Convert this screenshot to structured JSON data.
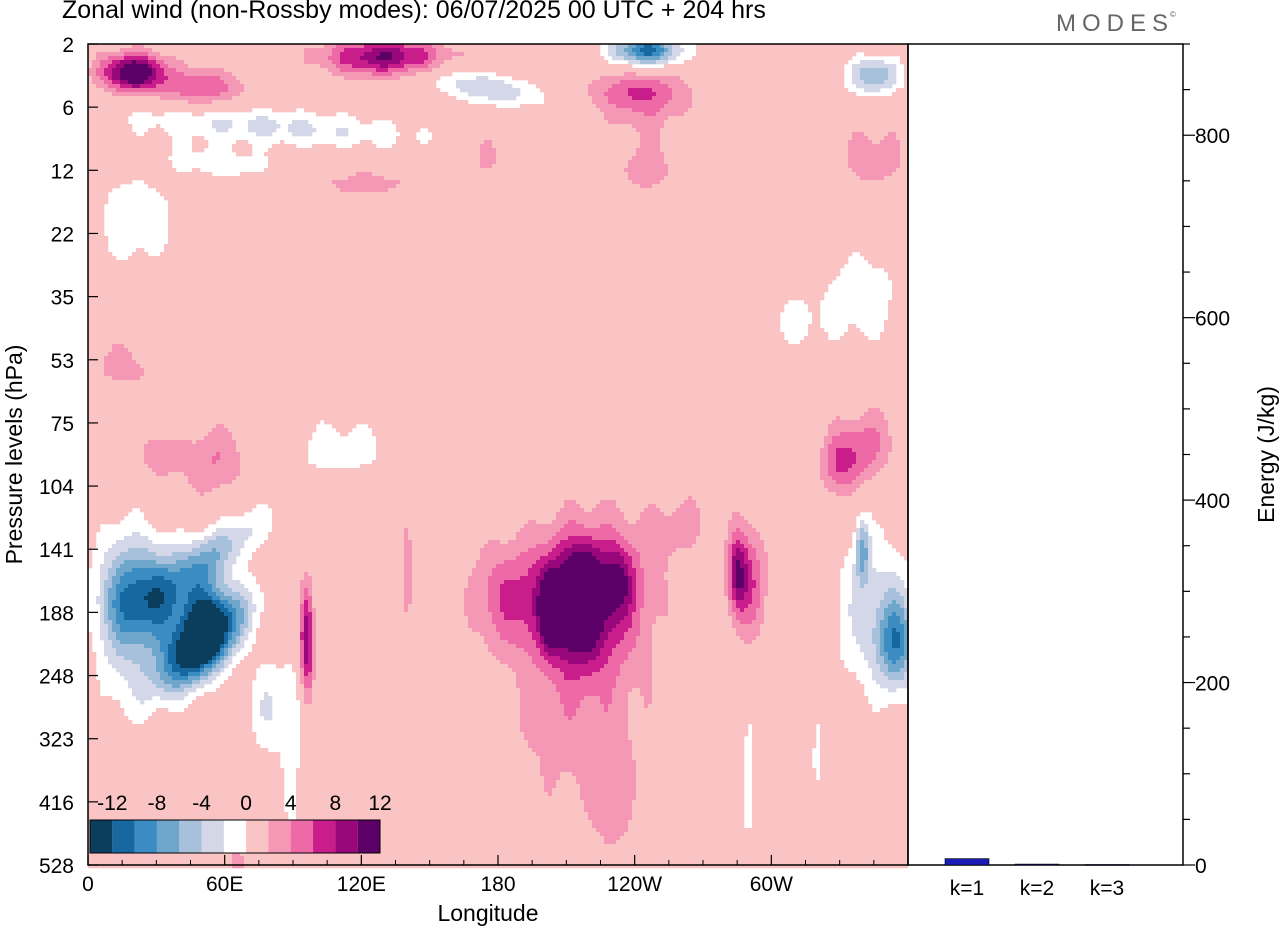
{
  "header": {
    "title": "Zonal wind (non-Rossby modes):  06/07/2025  00 UTC  + 204 hrs",
    "brand": "MODES",
    "brand_mark": "©"
  },
  "colors": {
    "scale": [
      "#0b3d5c",
      "#1767a0",
      "#3b8cc2",
      "#6ea6cc",
      "#a7c1dc",
      "#d4d7e8",
      "#ffffff",
      "#f9c4c3",
      "#f598b6",
      "#ee6aa6",
      "#c91d8c",
      "#99087a",
      "#5c0068"
    ]
  },
  "chart_data": [
    {
      "type": "heatmap",
      "title": "Zonal wind (non-Rossby modes):  06/07/2025  00 UTC  + 204 hrs",
      "xlabel": "Longitude",
      "ylabel": "Pressure levels (hPa)",
      "x_ticks": [
        "0",
        "60E",
        "120E",
        "180",
        "120W",
        "60W"
      ],
      "x_tick_values": [
        0,
        60,
        120,
        180,
        240,
        300
      ],
      "xlim": [
        0,
        360
      ],
      "y_ticks": [
        "2",
        "6",
        "12",
        "22",
        "35",
        "53",
        "75",
        "104",
        "141",
        "188",
        "248",
        "323",
        "416",
        "528"
      ],
      "colorbar_labels": [
        "-12",
        "-8",
        "-4",
        "0",
        "4",
        "8",
        "12"
      ],
      "colorbar_levels": [
        -14,
        -12,
        -10,
        -8,
        -6,
        -4,
        -2,
        2,
        4,
        6,
        8,
        10,
        12,
        14
      ],
      "units": "",
      "blobs": [
        {
          "x": 50,
          "y": 9.5,
          "rx": 12,
          "ry": 0.9,
          "v": -16,
          "rot": -40
        },
        {
          "x": 52,
          "y": 9.0,
          "rx": 9,
          "ry": 0.8,
          "v": -6
        },
        {
          "x": 58,
          "y": 8.0,
          "rx": 10,
          "ry": 0.9,
          "v": -6,
          "rot": -50
        },
        {
          "x": 30,
          "y": 8.8,
          "rx": 20,
          "ry": 0.8,
          "v": -12
        },
        {
          "x": 15,
          "y": 9.0,
          "rx": 12,
          "ry": 1.5,
          "v": -5
        },
        {
          "x": 80,
          "y": 10.5,
          "rx": 10,
          "ry": 0.8,
          "v": -4
        },
        {
          "x": 96,
          "y": 9.5,
          "rx": 3,
          "ry": 0.9,
          "v": 10
        },
        {
          "x": 140,
          "y": 8.5,
          "rx": 3,
          "ry": 0.9,
          "v": 3.5
        },
        {
          "x": 178,
          "y": 8.7,
          "rx": 11,
          "ry": 0.8,
          "v": 2.5
        },
        {
          "x": 200,
          "y": 8.8,
          "rx": 24,
          "ry": 0.9,
          "v": 6
        },
        {
          "x": 224,
          "y": 8.7,
          "rx": 24,
          "ry": 1.2,
          "v": 7
        },
        {
          "x": 215,
          "y": 9.0,
          "rx": 12,
          "ry": 0.9,
          "v": 6
        },
        {
          "x": 203,
          "y": 9.0,
          "rx": 4,
          "ry": 0.5,
          "v": 8
        },
        {
          "x": 218,
          "y": 8.5,
          "rx": 6,
          "ry": 0.5,
          "v": 5
        },
        {
          "x": 233,
          "y": 8.5,
          "rx": 6,
          "ry": 0.5,
          "v": 5
        },
        {
          "x": 215,
          "y": 10.8,
          "rx": 32,
          "ry": 1.4,
          "v": 3
        },
        {
          "x": 230,
          "y": 12.0,
          "rx": 8,
          "ry": 0.9,
          "v": 3
        },
        {
          "x": 260,
          "y": 7.6,
          "rx": 15,
          "ry": 0.6,
          "v": 2.5,
          "rot": -30
        },
        {
          "x": 290,
          "y": 8.5,
          "rx": 8,
          "ry": 0.9,
          "v": 6
        },
        {
          "x": 285,
          "y": 8.4,
          "rx": 4,
          "ry": 0.6,
          "v": 7
        },
        {
          "x": 345,
          "y": 9.0,
          "rx": 18,
          "ry": 1.3,
          "v": -5
        },
        {
          "x": 355,
          "y": 9.5,
          "rx": 8,
          "ry": 0.7,
          "v": -9
        },
        {
          "x": 340,
          "y": 8.0,
          "rx": 3,
          "ry": 0.5,
          "v": -7
        },
        {
          "x": 340,
          "y": 6.4,
          "rx": 14,
          "ry": 0.6,
          "v": 5,
          "rot": -20
        },
        {
          "x": 330,
          "y": 6.7,
          "rx": 8,
          "ry": 0.5,
          "v": 4
        },
        {
          "x": 55,
          "y": 6.6,
          "rx": 16,
          "ry": 0.6,
          "v": 4,
          "rot": -35
        },
        {
          "x": 30,
          "y": 6.5,
          "rx": 8,
          "ry": 0.4,
          "v": 3
        },
        {
          "x": 110,
          "y": 6.4,
          "rx": 28,
          "ry": 0.5,
          "v": -3
        },
        {
          "x": 15,
          "y": 5.1,
          "rx": 22,
          "ry": 0.5,
          "v": 2.5,
          "rot": -10
        },
        {
          "x": 40,
          "y": 4.0,
          "rx": 12,
          "ry": 0.3,
          "v": 2.2
        },
        {
          "x": 230,
          "y": 5.0,
          "rx": 10,
          "ry": 0.3,
          "v": -2.2
        },
        {
          "x": 310,
          "y": 4.4,
          "rx": 15,
          "ry": 0.5,
          "v": -2.5
        },
        {
          "x": 340,
          "y": 4.0,
          "rx": 18,
          "ry": 0.8,
          "v": -3.5
        },
        {
          "x": 20,
          "y": 2.8,
          "rx": 20,
          "ry": 0.8,
          "v": -3.5
        },
        {
          "x": 60,
          "y": 1.9,
          "rx": 30,
          "ry": 0.3,
          "v": -3,
          "rot": -8
        },
        {
          "x": 120,
          "y": 2.2,
          "rx": 35,
          "ry": 0.3,
          "v": 2.5
        },
        {
          "x": 175,
          "y": 1.7,
          "rx": 12,
          "ry": 0.4,
          "v": 2.5
        },
        {
          "x": 245,
          "y": 2.0,
          "rx": 15,
          "ry": 0.4,
          "v": 3
        },
        {
          "x": 345,
          "y": 1.8,
          "rx": 15,
          "ry": 0.6,
          "v": 3
        },
        {
          "x": 80,
          "y": 1.3,
          "rx": 70,
          "ry": 0.3,
          "v": -4.5,
          "rot": -4
        },
        {
          "x": 175,
          "y": 0.7,
          "rx": 25,
          "ry": 0.25,
          "v": -6,
          "rot": -10
        },
        {
          "x": 20,
          "y": 0.45,
          "rx": 14,
          "ry": 0.3,
          "v": 13
        },
        {
          "x": 50,
          "y": 0.7,
          "rx": 18,
          "ry": 0.3,
          "v": 6
        },
        {
          "x": 130,
          "y": 0.2,
          "rx": 26,
          "ry": 0.3,
          "v": 10
        },
        {
          "x": 245,
          "y": 0.1,
          "rx": 15,
          "ry": 0.25,
          "v": -13
        },
        {
          "x": 240,
          "y": 0.75,
          "rx": 22,
          "ry": 0.3,
          "v": 4
        },
        {
          "x": 345,
          "y": 0.5,
          "rx": 12,
          "ry": 0.3,
          "v": -8
        },
        {
          "x": 245,
          "y": 1.0,
          "rx": 20,
          "ry": 0.6,
          "v": 3
        },
        {
          "x": 320,
          "y": 11.0,
          "rx": 3,
          "ry": 1.0,
          "v": -2.5
        },
        {
          "x": 290,
          "y": 11.8,
          "rx": 4,
          "ry": 1.3,
          "v": -3
        },
        {
          "x": 65,
          "y": 13.0,
          "rx": 5,
          "ry": 0.5,
          "v": 2.5
        },
        {
          "x": 90,
          "y": 11.5,
          "rx": 5,
          "ry": 2.0,
          "v": -2.5
        }
      ]
    },
    {
      "type": "bar",
      "categories": [
        "k=1",
        "k=2",
        "k=3"
      ],
      "values": [
        7,
        1,
        0.5
      ],
      "ylabel": "Energy (J/kg)",
      "ylim": [
        0,
        900
      ],
      "y_ticks": [
        0,
        200,
        400,
        600,
        800
      ],
      "bar_color": "#1a1ab5"
    }
  ]
}
